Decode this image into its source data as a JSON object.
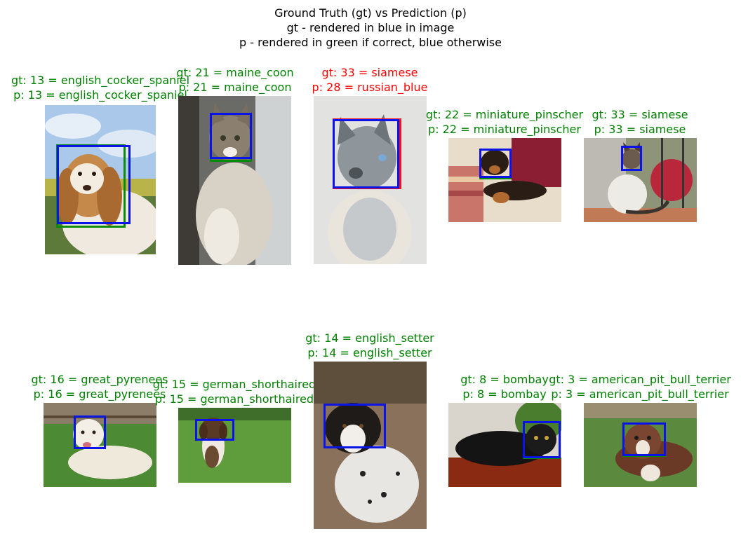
{
  "title": {
    "line1": "Ground Truth (gt) vs Prediction (p)",
    "line2": "gt - rendered in blue in image",
    "line3": "p - rendered in green if correct, blue otherwise"
  },
  "colors": {
    "gt_box": "#0b14e6",
    "pred_correct": "#0a8a0a",
    "pred_wrong": "#ff1010",
    "caption_correct": "#008000",
    "caption_wrong": "#ff0000"
  },
  "chart_data": {
    "type": "image-grid",
    "panels": [
      {
        "gt": "gt: 13 = english_cocker_spaniel",
        "p": "p: 13 = english_cocker_spaniel",
        "correct": true,
        "subject": "english cocker spaniel photo"
      },
      {
        "gt": "gt: 21 = maine_coon",
        "p": "p: 21 = maine_coon",
        "correct": true,
        "subject": "maine coon cat photo"
      },
      {
        "gt": "gt: 33 = siamese",
        "p": "p: 28 = russian_blue",
        "correct": false,
        "subject": "siamese cat photo"
      },
      {
        "gt": "gt: 22 = miniature_pinscher",
        "p": "p: 22 = miniature_pinscher",
        "correct": true,
        "subject": "miniature pinscher on couch"
      },
      {
        "gt": "gt: 33 = siamese",
        "p": "p: 33 = siamese",
        "correct": true,
        "subject": "siamese cat by window"
      },
      {
        "gt": "gt: 16 = great_pyrenees",
        "p": "p: 16 = great_pyrenees",
        "correct": true,
        "subject": "great pyrenees on grass"
      },
      {
        "gt": "gt: 15 = german_shorthaired",
        "p": "p: 15 = german_shorthaired",
        "correct": true,
        "subject": "german shorthaired pointer running"
      },
      {
        "gt": "gt: 14 = english_setter",
        "p": "p: 14 = english_setter",
        "correct": true,
        "subject": "english setter lying down"
      },
      {
        "gt": "gt: 8 = bombay",
        "p": "p: 8 = bombay",
        "correct": true,
        "subject": "bombay cat lying"
      },
      {
        "gt": "gt: 3 = american_pit_bull_terrier",
        "p": "p: 3 = american_pit_bull_terrier",
        "correct": true,
        "subject": "american pit bull terrier on grass"
      }
    ]
  }
}
